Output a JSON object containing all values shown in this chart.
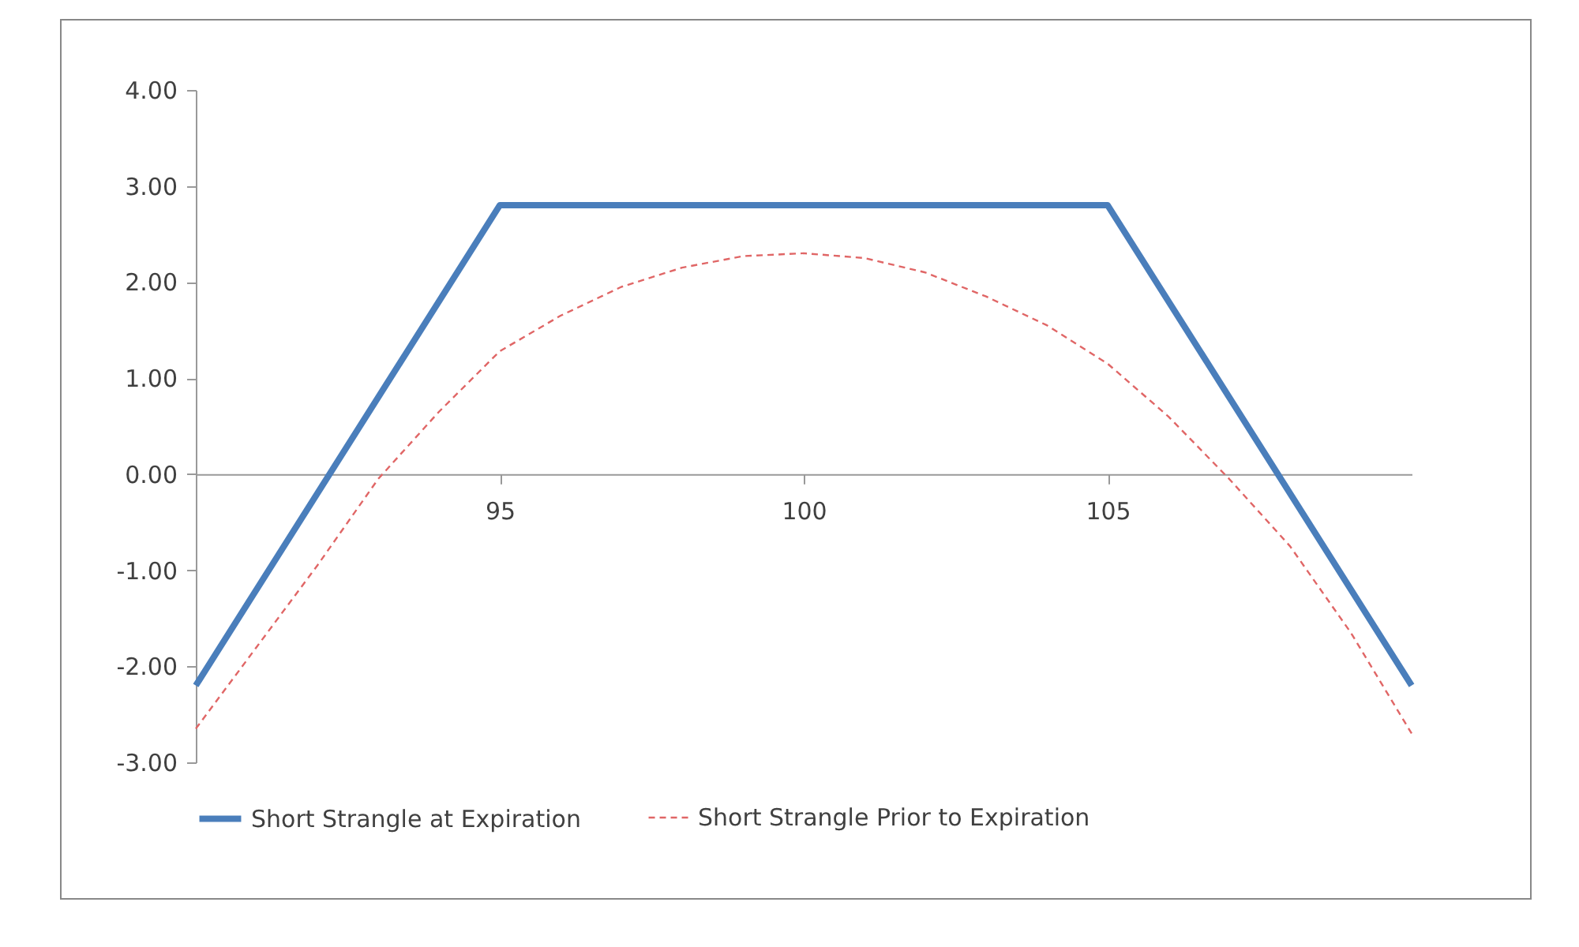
{
  "chart_data": {
    "type": "line",
    "xlim": [
      90,
      110
    ],
    "xticks": [
      95,
      100,
      105
    ],
    "ylim": [
      -3,
      4
    ],
    "yticks": [
      {
        "value": -3,
        "label": "-3.00"
      },
      {
        "value": -2,
        "label": "-2.00"
      },
      {
        "value": -1,
        "label": "-1.00"
      },
      {
        "value": 0,
        "label": "0.00"
      },
      {
        "value": 1,
        "label": "1.00"
      },
      {
        "value": 2,
        "label": "2.00"
      },
      {
        "value": 3,
        "label": "3.00"
      },
      {
        "value": 4,
        "label": "4.00"
      }
    ],
    "grid": false,
    "legend": "bottom",
    "marker": "none",
    "series": [
      {
        "name": "Short Strangle at Expiration",
        "color": "#4a7ebb",
        "line_style": "solid",
        "x": [
          90,
          95,
          105,
          110
        ],
        "values": [
          -2.2,
          2.8,
          2.8,
          -2.2
        ]
      },
      {
        "name": "Short Strangle Prior to Expiration",
        "color": "#e06666",
        "line_style": "dashed",
        "x": [
          90,
          91,
          92,
          93,
          94,
          95,
          96,
          97,
          98,
          99,
          100,
          101,
          102,
          103,
          104,
          105,
          106,
          107,
          108,
          109,
          110
        ],
        "values": [
          -2.65,
          -1.8,
          -0.95,
          -0.05,
          0.65,
          1.28,
          1.65,
          1.95,
          2.15,
          2.27,
          2.3,
          2.25,
          2.1,
          1.85,
          1.55,
          1.15,
          0.6,
          -0.05,
          -0.75,
          -1.65,
          -2.7
        ]
      }
    ]
  }
}
